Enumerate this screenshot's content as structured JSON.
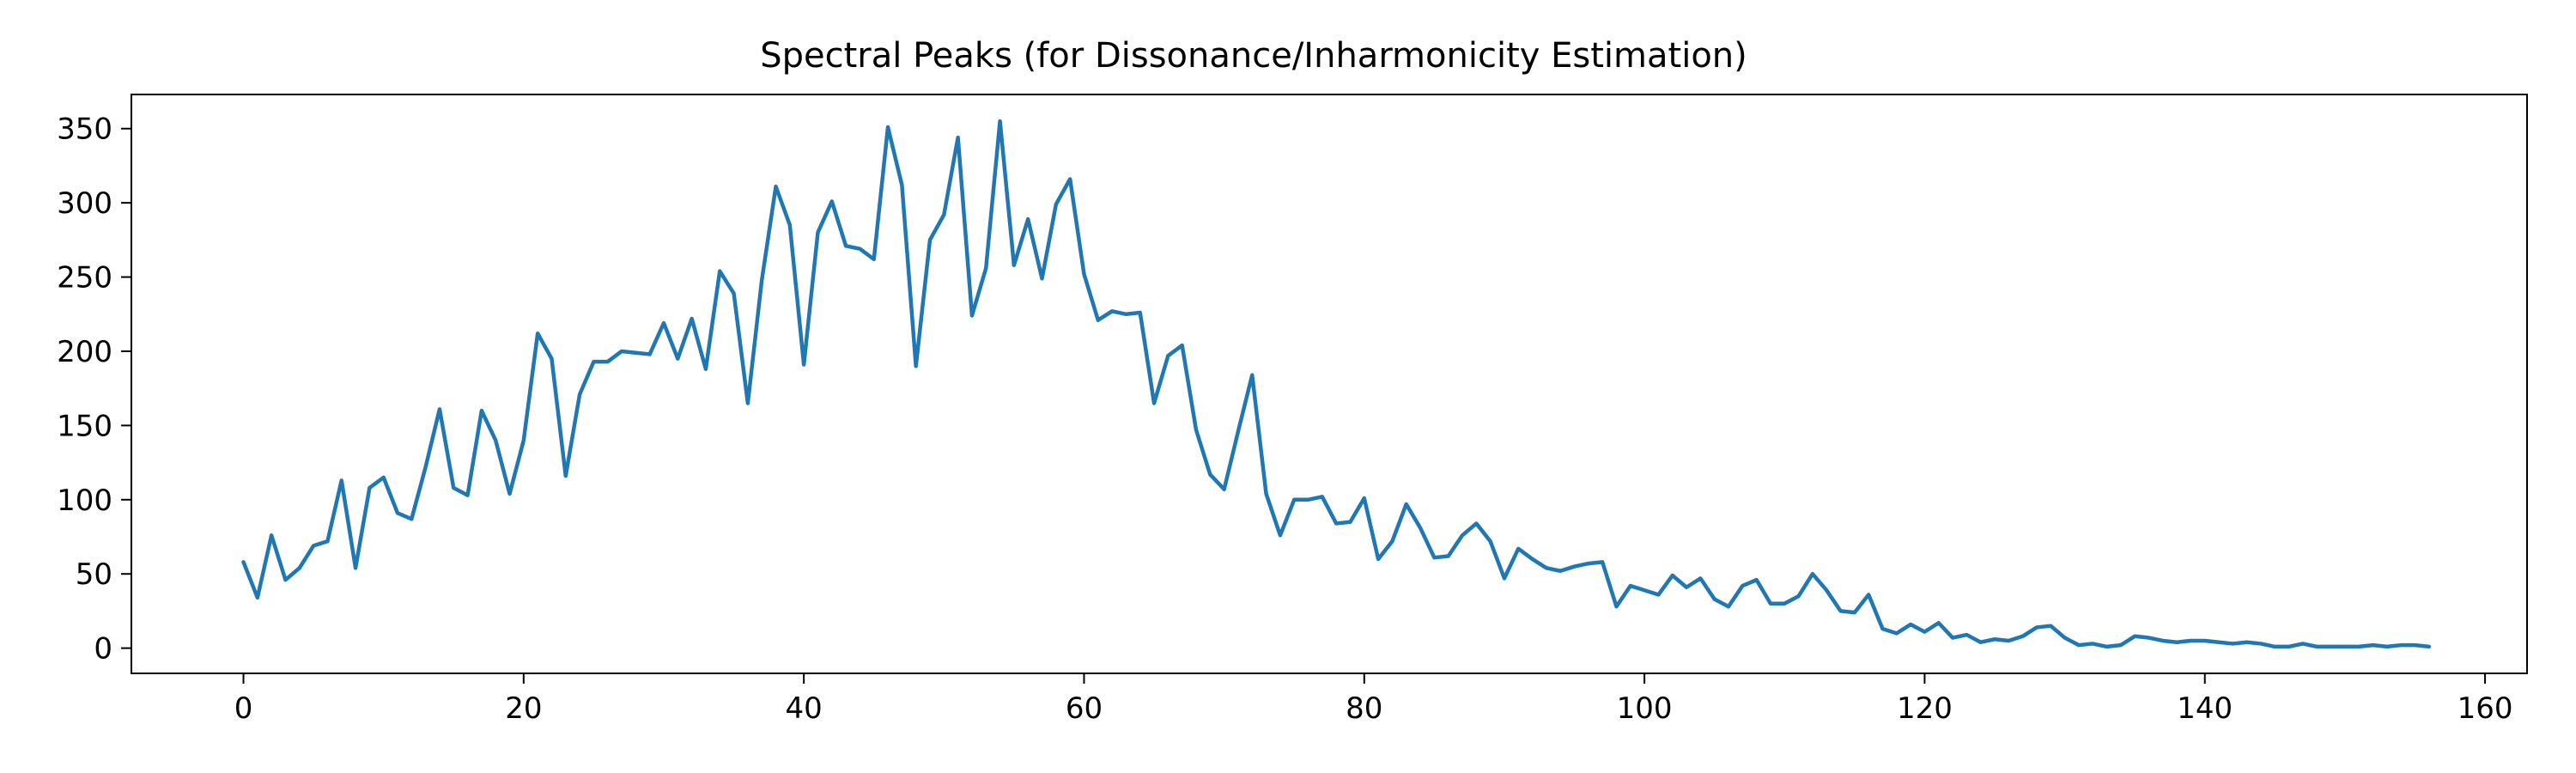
{
  "chart_data": {
    "type": "line",
    "title": "Spectral Peaks (for Dissonance/Inharmonicity Estimation)",
    "xlabel": "",
    "ylabel": "",
    "xlim": [
      -8,
      163
    ],
    "ylim": [
      -17,
      373
    ],
    "x_ticks": [
      0,
      20,
      40,
      60,
      80,
      100,
      120,
      140,
      160
    ],
    "y_ticks": [
      0,
      50,
      100,
      150,
      200,
      250,
      300,
      350
    ],
    "grid": false,
    "legend": "none",
    "colors": {
      "line": "#1f77b4",
      "axes": "#000000"
    },
    "series": [
      {
        "x_start": 0,
        "x_step": 1,
        "values": [
          58,
          34,
          76,
          46,
          54,
          69,
          72,
          113,
          54,
          108,
          115,
          91,
          87,
          122,
          161,
          108,
          103,
          160,
          140,
          104,
          140,
          212,
          195,
          116,
          171,
          193,
          193,
          200,
          199,
          198,
          219,
          195,
          222,
          188,
          254,
          239,
          165,
          248,
          311,
          285,
          191,
          280,
          301,
          271,
          269,
          262,
          351,
          312,
          190,
          275,
          292,
          344,
          224,
          256,
          355,
          258,
          289,
          249,
          299,
          316,
          252,
          221,
          227,
          225,
          226,
          165,
          197,
          204,
          147,
          117,
          107,
          146,
          184,
          104,
          76,
          100,
          100,
          102,
          84,
          85,
          101,
          60,
          72,
          97,
          81,
          61,
          62,
          76,
          84,
          72,
          47,
          67,
          60,
          54,
          52,
          55,
          57,
          58,
          28,
          42,
          39,
          36,
          49,
          41,
          47,
          33,
          28,
          42,
          46,
          30,
          30,
          35,
          50,
          39,
          25,
          24,
          36,
          13,
          10,
          16,
          11,
          17,
          7,
          9,
          4,
          6,
          5,
          8,
          14,
          15,
          7,
          2,
          3,
          1,
          2,
          8,
          7,
          5,
          4,
          5,
          5,
          4,
          3,
          4,
          3,
          1,
          1,
          3,
          1,
          1,
          1,
          1,
          2,
          1,
          2,
          2,
          1
        ]
      }
    ]
  }
}
